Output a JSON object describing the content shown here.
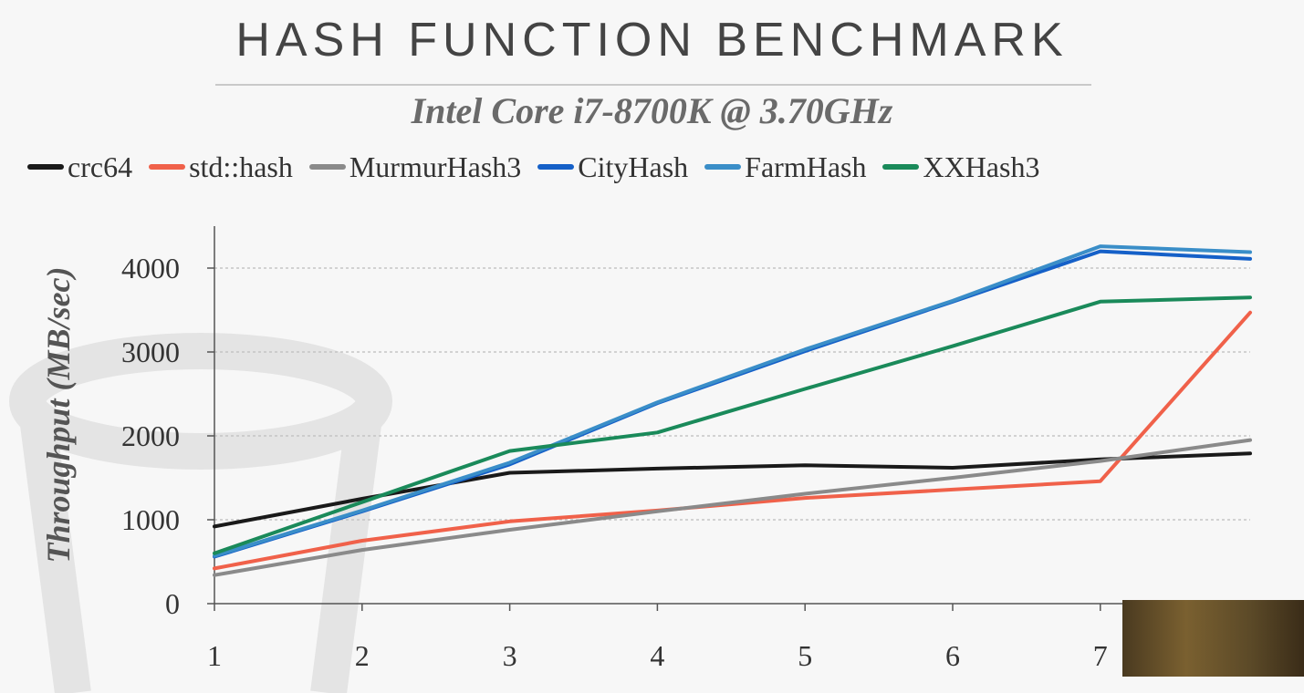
{
  "slide": {
    "title": "HASH FUNCTION BENCHMARK",
    "subtitle": "Intel Core i7-8700K @ 3.70GHz"
  },
  "legend": [
    {
      "name": "crc64",
      "color": "#1a1a1a"
    },
    {
      "name": "std::hash",
      "color": "#f0614a"
    },
    {
      "name": "MurmurHash3",
      "color": "#8a8a8a"
    },
    {
      "name": "CityHash",
      "color": "#1560c8"
    },
    {
      "name": "FarmHash",
      "color": "#3a8ec8"
    },
    {
      "name": "XXHash3",
      "color": "#1a8a5a"
    }
  ],
  "chart_data": {
    "type": "line",
    "title": "HASH FUNCTION BENCHMARK",
    "subtitle": "Intel Core i7-8700K @ 3.70GHz",
    "xlabel": "",
    "ylabel": "Throughput (MB/sec)",
    "x": [
      1,
      2,
      3,
      4,
      5,
      6,
      7,
      8
    ],
    "x_tick_labels": [
      "1",
      "2",
      "3",
      "4",
      "5",
      "6",
      "7"
    ],
    "y_ticks": [
      0,
      1000,
      2000,
      3000,
      4000
    ],
    "y_tick_labels": [
      "0",
      "1000",
      "2000",
      "3000",
      "4000"
    ],
    "ylim": [
      0,
      4500
    ],
    "xlim": [
      1,
      8
    ],
    "grid": "horizontal dashed",
    "legend_position": "top",
    "series": [
      {
        "name": "crc64",
        "color": "#1a1a1a",
        "values": [
          920,
          1250,
          1560,
          1610,
          1650,
          1620,
          1720,
          1790
        ]
      },
      {
        "name": "std::hash",
        "color": "#f0614a",
        "values": [
          420,
          750,
          980,
          1110,
          1260,
          1360,
          1460,
          3470
        ]
      },
      {
        "name": "MurmurHash3",
        "color": "#8a8a8a",
        "values": [
          340,
          640,
          880,
          1100,
          1310,
          1500,
          1700,
          1950
        ]
      },
      {
        "name": "CityHash",
        "color": "#1560c8",
        "values": [
          560,
          1100,
          1660,
          2390,
          3010,
          3600,
          4200,
          4110
        ]
      },
      {
        "name": "FarmHash",
        "color": "#3a8ec8",
        "values": [
          570,
          1110,
          1680,
          2400,
          3030,
          3610,
          4260,
          4190
        ]
      },
      {
        "name": "XXHash3",
        "color": "#1a8a5a",
        "values": [
          600,
          1210,
          1820,
          2040,
          2560,
          3070,
          3600,
          3650
        ]
      }
    ]
  }
}
